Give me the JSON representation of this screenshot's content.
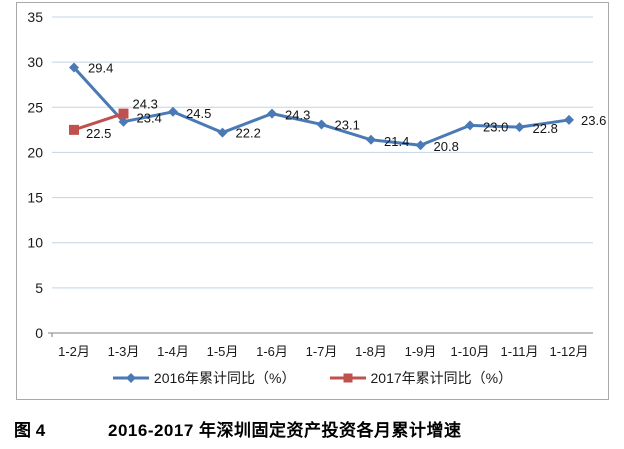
{
  "figure": {
    "caption_label": "图 4",
    "caption_title": "2016-2017 年深圳固定资产投资各月累计增速"
  },
  "chart_data": {
    "type": "line",
    "title": "",
    "xlabel": "",
    "ylabel": "",
    "categories": [
      "1-2月",
      "1-3月",
      "1-4月",
      "1-5月",
      "1-6月",
      "1-7月",
      "1-8月",
      "1-9月",
      "1-10月",
      "1-11月",
      "1-12月"
    ],
    "series": [
      {
        "name": "2016年累计同比（%）",
        "color": "#4a7ab5",
        "marker": "diamond",
        "values": [
          29.4,
          23.4,
          24.5,
          22.2,
          24.3,
          23.1,
          21.4,
          20.8,
          23.0,
          22.8,
          23.6
        ]
      },
      {
        "name": "2017年累计同比（%）",
        "color": "#c0504d",
        "marker": "square",
        "values": [
          22.5,
          24.3
        ]
      }
    ],
    "ylim": [
      0,
      35
    ],
    "yticks": [
      0,
      5,
      10,
      15,
      20,
      25,
      30,
      35
    ],
    "grid": true,
    "legend_position": "bottom",
    "gridline_color": "#c3d3e5",
    "axis_line_color": "#9a9a9a",
    "tick_label_color": "#1a1a1a",
    "data_label_color": "#141414",
    "data_labels_shown": true
  }
}
